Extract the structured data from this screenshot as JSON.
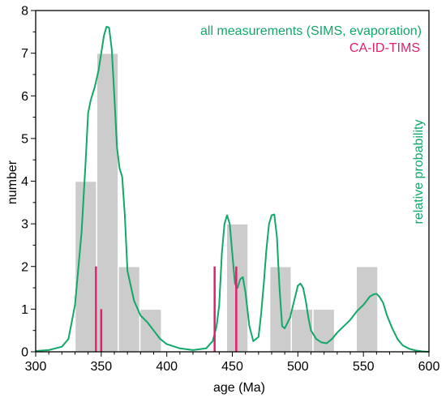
{
  "chart_data": {
    "type": "bar",
    "xlabel": "age (Ma)",
    "ylabel": "number",
    "y2label": "relative probability",
    "xlim": [
      300,
      600
    ],
    "ylim": [
      0,
      8
    ],
    "x_ticks": [
      300,
      350,
      400,
      450,
      500,
      550,
      600
    ],
    "y_ticks": [
      0,
      1,
      2,
      3,
      4,
      5,
      6,
      7,
      8
    ],
    "legend_position": "top-right",
    "colors": {
      "histogram": "#cccccc",
      "curve": "#12a86a",
      "caidtims": "#e0206f"
    },
    "histogram": {
      "bin_width": 16.5,
      "bins": [
        {
          "start": 330,
          "end": 346.5,
          "count": 4
        },
        {
          "start": 346.5,
          "end": 363,
          "count": 7
        },
        {
          "start": 363,
          "end": 379.5,
          "count": 2
        },
        {
          "start": 379.5,
          "end": 396,
          "count": 1
        },
        {
          "start": 396,
          "end": 412.5,
          "count": 0
        },
        {
          "start": 412.5,
          "end": 429,
          "count": 0
        },
        {
          "start": 429,
          "end": 445.5,
          "count": 0
        },
        {
          "start": 445.5,
          "end": 462,
          "count": 3
        },
        {
          "start": 462,
          "end": 478.5,
          "count": 0
        },
        {
          "start": 478.5,
          "end": 495,
          "count": 2
        },
        {
          "start": 495,
          "end": 511.5,
          "count": 1
        },
        {
          "start": 511.5,
          "end": 528,
          "count": 1
        },
        {
          "start": 528,
          "end": 544.5,
          "count": 0
        },
        {
          "start": 544.5,
          "end": 561,
          "count": 2
        }
      ]
    },
    "series": [
      {
        "name": "all measurements (SIMS, evaporation)",
        "kind": "line",
        "x": [
          300,
          310,
          320,
          325,
          330,
          335,
          338,
          340,
          342,
          345,
          348,
          350,
          352,
          354,
          356,
          358,
          360,
          362,
          364,
          366,
          368,
          370,
          375,
          380,
          385,
          390,
          395,
          400,
          410,
          420,
          430,
          435,
          438,
          440,
          442,
          444,
          446,
          448,
          450,
          452,
          454,
          456,
          458,
          460,
          463,
          466,
          470,
          472,
          474,
          476,
          478,
          480,
          482,
          484,
          486,
          488,
          490,
          494,
          498,
          500,
          502,
          504,
          506,
          508,
          510,
          514,
          518,
          522,
          526,
          530,
          535,
          540,
          545,
          550,
          555,
          558,
          560,
          562,
          565,
          568,
          572,
          576,
          580,
          585,
          590,
          595,
          600
        ],
        "y": [
          0.02,
          0.04,
          0.12,
          0.3,
          1.1,
          2.8,
          4.4,
          5.6,
          5.9,
          6.2,
          6.6,
          7.0,
          7.4,
          7.62,
          7.6,
          7.1,
          6.0,
          4.8,
          4.3,
          4.1,
          3.2,
          1.9,
          1.2,
          0.85,
          0.7,
          0.5,
          0.3,
          0.18,
          0.08,
          0.04,
          0.08,
          0.25,
          0.6,
          1.1,
          2.3,
          3.0,
          3.2,
          3.0,
          2.3,
          1.6,
          1.5,
          1.7,
          1.75,
          1.4,
          0.6,
          0.25,
          0.35,
          0.9,
          1.6,
          2.4,
          3.0,
          3.2,
          3.22,
          2.7,
          1.5,
          0.6,
          0.55,
          0.8,
          1.3,
          1.55,
          1.6,
          1.5,
          1.2,
          0.8,
          0.5,
          0.3,
          0.22,
          0.2,
          0.3,
          0.45,
          0.6,
          0.75,
          0.95,
          1.1,
          1.3,
          1.35,
          1.36,
          1.3,
          1.15,
          0.85,
          0.55,
          0.3,
          0.15,
          0.07,
          0.03,
          0.01,
          0.0
        ]
      },
      {
        "name": "CA-ID-TIMS",
        "kind": "impulse",
        "points": [
          {
            "x": 346,
            "y": 2.0
          },
          {
            "x": 350,
            "y": 1.0
          },
          {
            "x": 436.5,
            "y": 2.0
          },
          {
            "x": 453,
            "y": 2.0
          }
        ]
      }
    ]
  }
}
